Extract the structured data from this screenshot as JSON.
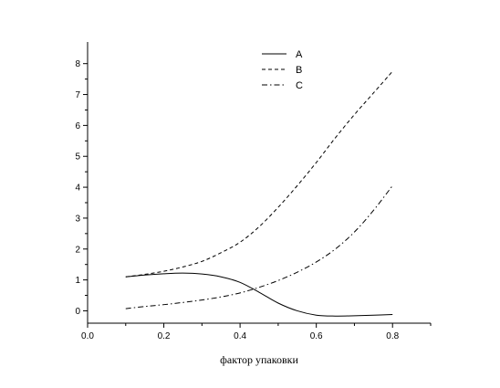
{
  "chart_data": {
    "type": "line",
    "title": "",
    "xlabel": "фактор упаковки",
    "ylabel": "",
    "xlim": [
      0.0,
      0.9
    ],
    "ylim": [
      -0.4,
      8.7
    ],
    "x_ticks": [
      "0.0",
      "0.2",
      "0.4",
      "0.6",
      "0.8"
    ],
    "y_ticks": [
      "0",
      "1",
      "2",
      "3",
      "4",
      "5",
      "6",
      "7",
      "8"
    ],
    "grid": false,
    "legend_position": "top-center",
    "series": [
      {
        "name": "A",
        "style": "solid",
        "x": [
          0.1,
          0.15,
          0.2,
          0.25,
          0.3,
          0.35,
          0.4,
          0.45,
          0.5,
          0.55,
          0.6,
          0.65,
          0.7,
          0.75,
          0.8
        ],
        "y": [
          1.1,
          1.16,
          1.2,
          1.22,
          1.19,
          1.1,
          0.92,
          0.6,
          0.25,
          0.0,
          -0.14,
          -0.17,
          -0.16,
          -0.14,
          -0.12
        ]
      },
      {
        "name": "B",
        "style": "dash",
        "x": [
          0.1,
          0.15,
          0.2,
          0.25,
          0.3,
          0.35,
          0.4,
          0.45,
          0.5,
          0.55,
          0.6,
          0.65,
          0.7,
          0.75,
          0.8
        ],
        "y": [
          1.1,
          1.18,
          1.28,
          1.42,
          1.6,
          1.88,
          2.22,
          2.72,
          3.35,
          4.05,
          4.8,
          5.6,
          6.35,
          7.05,
          7.75
        ]
      },
      {
        "name": "C",
        "style": "dash-dot",
        "x": [
          0.1,
          0.15,
          0.2,
          0.25,
          0.3,
          0.35,
          0.4,
          0.45,
          0.5,
          0.55,
          0.6,
          0.65,
          0.7,
          0.75,
          0.8
        ],
        "y": [
          0.07,
          0.14,
          0.2,
          0.27,
          0.35,
          0.45,
          0.58,
          0.76,
          0.98,
          1.25,
          1.58,
          2.0,
          2.55,
          3.25,
          4.05
        ]
      }
    ]
  }
}
